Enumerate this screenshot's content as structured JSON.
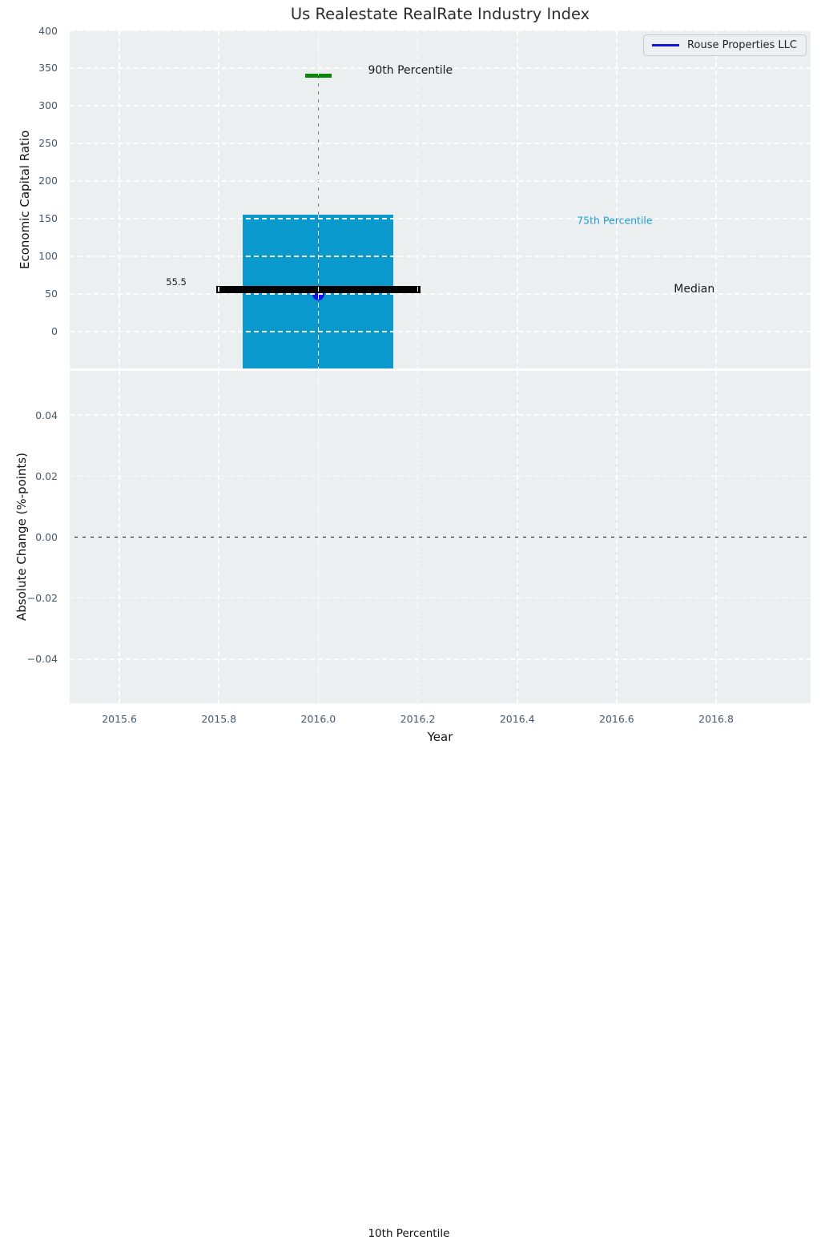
{
  "title": "Us Realestate RealRate Industry Index",
  "legend": {
    "label": "Rouse Properties LLC",
    "line_color": "#1414e6"
  },
  "footer_annotation": {
    "text": "10th Percentile",
    "x": 2016.1
  },
  "colors": {
    "bar": "#0999cd",
    "percentile_cap": "#0c850c",
    "median_line": "#000000",
    "company_dot": "#1414e6",
    "whisker": "#5a5a5a",
    "plot_background": "#ecefef",
    "grid": "#ffffff",
    "tick_label": "#47586a",
    "annotation_75th_color": "#1e9cd0"
  },
  "chart_data": [
    {
      "type": "box-whisker",
      "ylabel": "Economic Capital Ratio",
      "xlim": [
        2015.5,
        2016.99
      ],
      "ylim": [
        -49,
        400
      ],
      "xtick_values": [
        2015.6,
        2015.8,
        2016.0,
        2016.2,
        2016.4,
        2016.6,
        2016.8
      ],
      "xtick_labels": [
        "2015.6",
        "2015.8",
        "2016.0",
        "2016.2",
        "2016.4",
        "2016.6",
        "2016.8"
      ],
      "ytick_values": [
        0,
        50,
        100,
        150,
        200,
        250,
        300,
        350,
        400
      ],
      "ytick_labels": [
        "0",
        "50",
        "100",
        "150",
        "200",
        "250",
        "300",
        "350",
        "400"
      ],
      "grid": true,
      "legend_position": "upper right",
      "box": {
        "x": 2016.0,
        "p90": 340,
        "p75": 155,
        "median": 55.5,
        "median_label": "55.5",
        "p25": null,
        "p10": null,
        "note": "box bottom (25th pct) and 10th percentile whisker extend below the visible axis; 10th percentile label sits at the bottom of the figure",
        "bar_width": 0.303,
        "median_width": 0.41,
        "cap_width": 0.053
      },
      "company_point": {
        "name": "Rouse Properties LLC",
        "x": 2016.0,
        "y": 49
      },
      "annotations": [
        {
          "text": "90th Percentile",
          "x": 2016.1,
          "y": 347,
          "align": "left",
          "color": "#1a1a1a",
          "size": 14
        },
        {
          "text": "75th Percentile",
          "x": 2016.52,
          "y": 148,
          "align": "left",
          "color": "#1e9cd0",
          "size": 12.5
        },
        {
          "text": "Median",
          "x": 2016.715,
          "y": 56,
          "align": "left",
          "color": "#1a1a1a",
          "size": 14
        },
        {
          "text": "55.5",
          "x": 2015.735,
          "y": 66,
          "align": "right",
          "color": "#1a1a1a",
          "size": 11.5
        }
      ]
    },
    {
      "type": "line",
      "xlabel": "Year",
      "ylabel": "Absolute Change (%-points)",
      "xlim": [
        2015.5,
        2016.99
      ],
      "ylim": [
        -0.0545,
        0.0545
      ],
      "xtick_values": [
        2015.6,
        2015.8,
        2016.0,
        2016.2,
        2016.4,
        2016.6,
        2016.8
      ],
      "xtick_labels": [
        "2015.6",
        "2015.8",
        "2016.0",
        "2016.2",
        "2016.4",
        "2016.6",
        "2016.8"
      ],
      "ytick_values": [
        0.04,
        0.02,
        0,
        -0.02,
        -0.04
      ],
      "ytick_labels": [
        "0.04",
        "0.02",
        "0.00",
        "−0.02",
        "−0.04"
      ],
      "grid": true,
      "zero_line": 0,
      "series": []
    }
  ]
}
